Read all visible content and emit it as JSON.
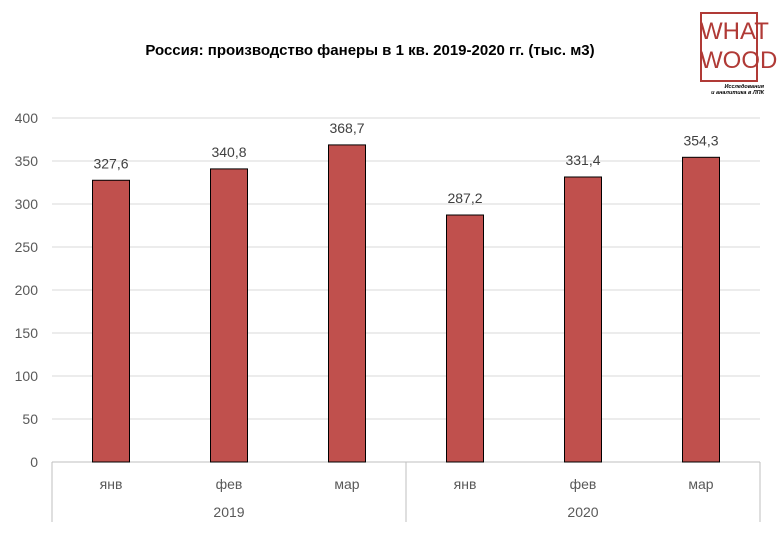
{
  "chart_data": {
    "type": "bar",
    "title": "Россия: производство фанеры в 1 кв. 2019-2020 гг. (тыс. м3)",
    "categories": [
      "янв",
      "фев",
      "мар",
      "янв",
      "фев",
      "мар"
    ],
    "groups": [
      {
        "label": "2019",
        "categories": [
          "янв",
          "фев",
          "мар"
        ]
      },
      {
        "label": "2020",
        "categories": [
          "янв",
          "фев",
          "мар"
        ]
      }
    ],
    "values": [
      327.6,
      340.8,
      368.7,
      287.2,
      331.4,
      354.3
    ],
    "value_labels": [
      "327,6",
      "340,8",
      "368,7",
      "287,2",
      "331,4",
      "354,3"
    ],
    "ylim": [
      0,
      400
    ],
    "yticks": [
      0,
      50,
      100,
      150,
      200,
      250,
      300,
      350,
      400
    ],
    "grid": true,
    "bar_color": "#c0504d"
  },
  "logo": {
    "line1": "WHAT",
    "line2": "WOOD",
    "tagline1": "Исследования",
    "tagline2": "и аналитика в ЛПК",
    "color": "#b03a36"
  }
}
